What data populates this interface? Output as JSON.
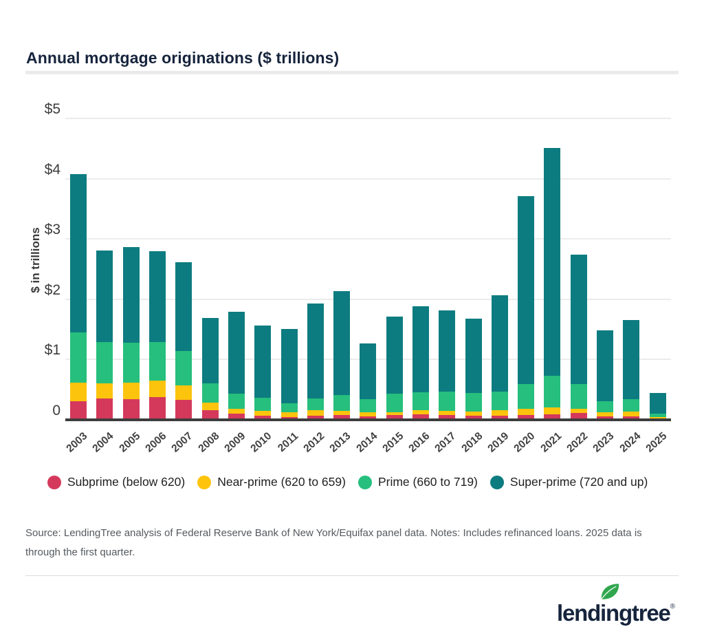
{
  "header": {
    "title": "Annual mortgage originations ($ trillions)"
  },
  "source": {
    "text": "Source: LendingTree analysis of Federal Reserve Bank of New York/Equifax panel data. Notes: Includes refinanced loans. 2025 data is through the first quarter."
  },
  "footer": {
    "logo_text": "lendingtree",
    "reg_mark": "®",
    "leaf_color": "#2fa64d"
  },
  "colors": {
    "subprime": "#d4395c",
    "near_prime": "#fdc40d",
    "prime": "#26bf7d",
    "super_prime": "#0d7c80",
    "title_navy": "#16243c",
    "axis": "#3d3d3d",
    "gridline": "#ececec",
    "divider": "#eaeaea",
    "source_text": "#55595e"
  },
  "chart_data": {
    "type": "bar",
    "stacked": true,
    "title": "Annual mortgage originations ($ trillions)",
    "xlabel": "",
    "ylabel": "$ in trillions",
    "ylim": [
      0,
      5
    ],
    "y_tick_labels": [
      "$5",
      "$4",
      "$3",
      "$2",
      "$1",
      "0"
    ],
    "grid": "horizontal",
    "legend_position": "bottom",
    "categories": [
      "2003",
      "2004",
      "2005",
      "2006",
      "2007",
      "2008",
      "2009",
      "2010",
      "2011",
      "2012",
      "2013",
      "2014",
      "2015",
      "2016",
      "2017",
      "2018",
      "2019",
      "2020",
      "2021",
      "2022",
      "2023",
      "2024",
      "2025"
    ],
    "series": [
      {
        "key": "subprime",
        "name": "Subprime (below 620)",
        "color": "#d4395c",
        "values": [
          0.3,
          0.34,
          0.33,
          0.37,
          0.32,
          0.15,
          0.09,
          0.06,
          0.04,
          0.06,
          0.07,
          0.05,
          0.07,
          0.08,
          0.07,
          0.06,
          0.06,
          0.07,
          0.08,
          0.1,
          0.05,
          0.05,
          0.01
        ]
      },
      {
        "key": "near_prime",
        "name": "Near-prime (620 to 659)",
        "color": "#fdc40d",
        "values": [
          0.31,
          0.25,
          0.27,
          0.27,
          0.24,
          0.13,
          0.08,
          0.08,
          0.07,
          0.09,
          0.07,
          0.06,
          0.05,
          0.07,
          0.07,
          0.07,
          0.09,
          0.1,
          0.12,
          0.07,
          0.06,
          0.08,
          0.02
        ]
      },
      {
        "key": "prime",
        "name": "Prime (660 to 719)",
        "color": "#26bf7d",
        "values": [
          0.83,
          0.69,
          0.67,
          0.64,
          0.57,
          0.31,
          0.25,
          0.21,
          0.15,
          0.19,
          0.26,
          0.22,
          0.3,
          0.3,
          0.32,
          0.3,
          0.31,
          0.41,
          0.52,
          0.41,
          0.19,
          0.2,
          0.06
        ]
      },
      {
        "key": "super_prime",
        "name": "Super-prime (720 and up)",
        "color": "#0d7c80",
        "values": [
          2.62,
          1.52,
          1.58,
          1.5,
          1.48,
          1.09,
          1.36,
          1.2,
          1.24,
          1.58,
          1.72,
          0.92,
          1.28,
          1.42,
          1.35,
          1.24,
          1.59,
          3.12,
          3.78,
          2.15,
          1.17,
          1.32,
          0.34
        ]
      }
    ],
    "totals": [
      4.06,
      2.8,
      2.85,
      2.78,
      2.61,
      1.68,
      1.78,
      1.55,
      1.5,
      1.92,
      2.12,
      1.25,
      1.7,
      1.87,
      1.81,
      1.67,
      2.05,
      3.7,
      4.5,
      2.73,
      1.47,
      1.65,
      0.43
    ]
  }
}
